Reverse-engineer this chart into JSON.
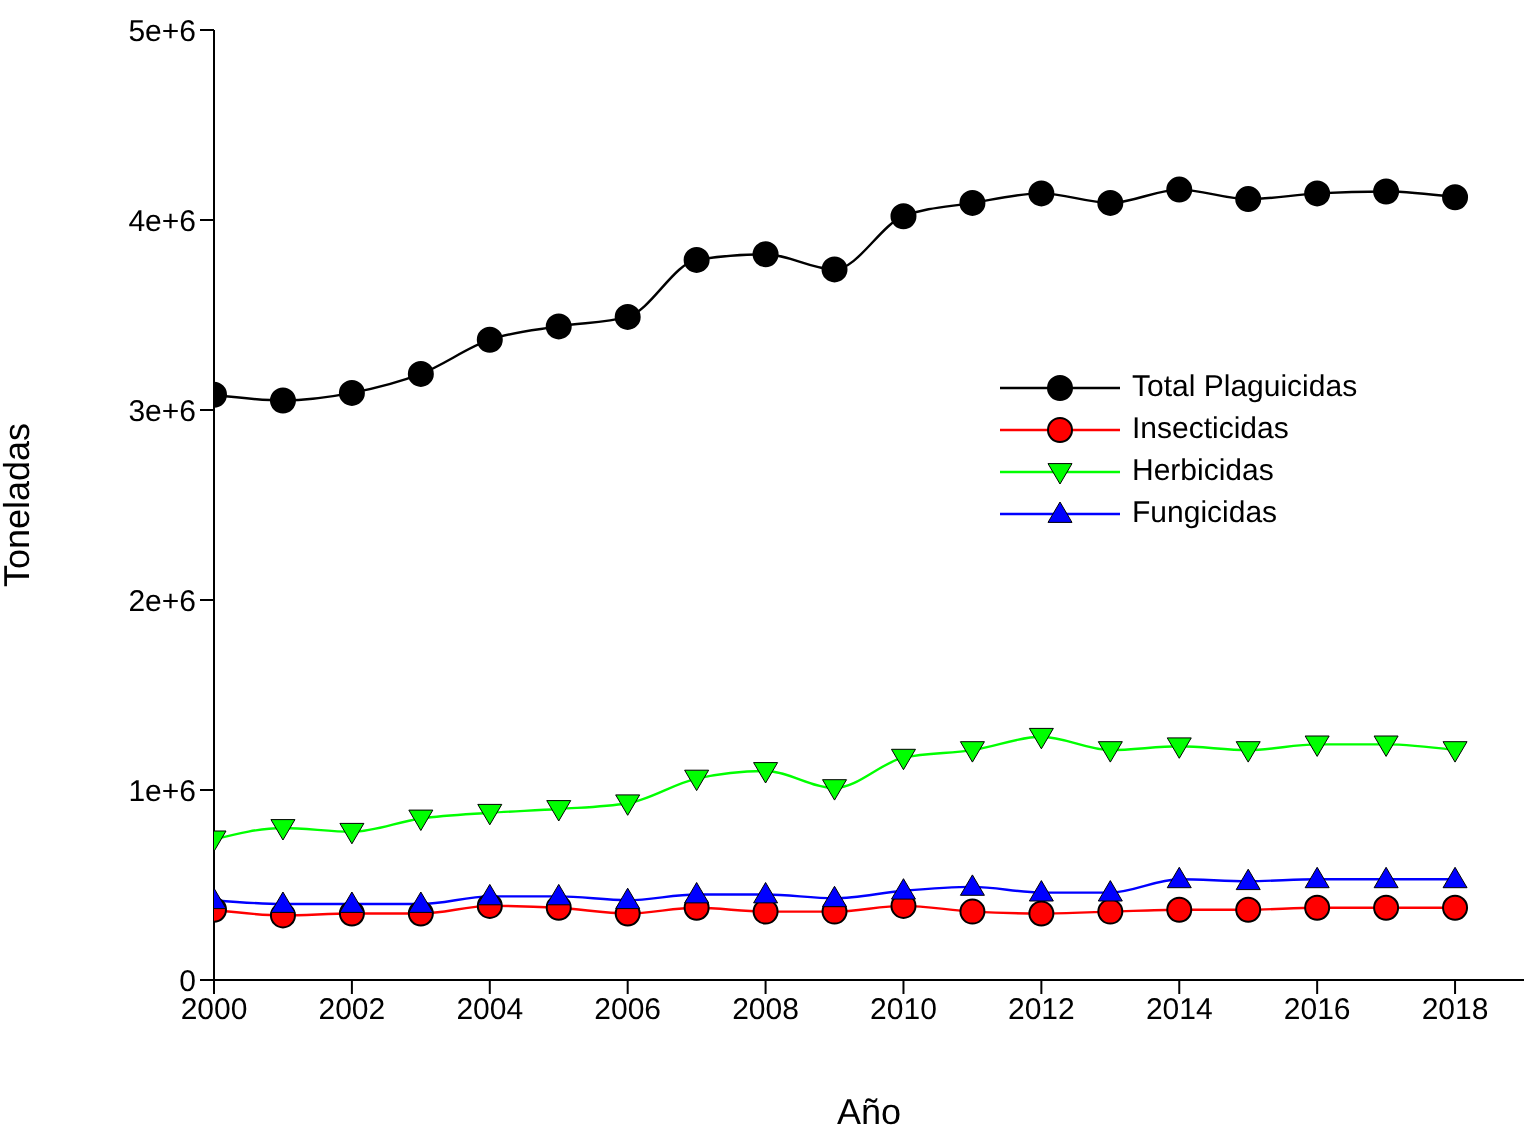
{
  "chart_data": {
    "type": "line",
    "xlabel": "Año",
    "ylabel": "Toneladas",
    "x": [
      2000,
      2001,
      2002,
      2003,
      2004,
      2005,
      2006,
      2007,
      2008,
      2009,
      2010,
      2011,
      2012,
      2013,
      2014,
      2015,
      2016,
      2017,
      2018
    ],
    "series": [
      {
        "name": "Total Plaguicidas",
        "color": "#000000",
        "marker": "circle",
        "values": [
          3080000,
          3050000,
          3090000,
          3190000,
          3370000,
          3440000,
          3490000,
          3790000,
          3820000,
          3740000,
          4020000,
          4090000,
          4140000,
          4090000,
          4160000,
          4110000,
          4140000,
          4150000,
          4120000
        ]
      },
      {
        "name": "Insecticidas",
        "color": "#ff0000",
        "marker": "circle",
        "values": [
          370000,
          340000,
          350000,
          350000,
          390000,
          380000,
          350000,
          380000,
          360000,
          360000,
          390000,
          360000,
          350000,
          360000,
          370000,
          370000,
          380000,
          380000,
          380000
        ]
      },
      {
        "name": "Herbicidas",
        "color": "#00ff00",
        "marker": "triangle-down",
        "values": [
          740000,
          800000,
          780000,
          850000,
          880000,
          900000,
          930000,
          1060000,
          1100000,
          1010000,
          1170000,
          1210000,
          1280000,
          1210000,
          1230000,
          1210000,
          1240000,
          1240000,
          1210000
        ]
      },
      {
        "name": "Fungicidas",
        "color": "#0000ff",
        "marker": "triangle",
        "values": [
          420000,
          400000,
          400000,
          400000,
          440000,
          440000,
          420000,
          450000,
          450000,
          430000,
          470000,
          490000,
          460000,
          460000,
          530000,
          520000,
          530000,
          530000,
          530000
        ]
      }
    ],
    "xlim": [
      2000,
      2019
    ],
    "xticks": [
      2000,
      2002,
      2004,
      2006,
      2008,
      2010,
      2012,
      2014,
      2016,
      2018
    ],
    "ylim": [
      0,
      5000000
    ],
    "yticks": [
      0,
      {
        "value": 1000000,
        "label": "1e+6"
      },
      {
        "value": 2000000,
        "label": "2e+6"
      },
      {
        "value": 3000000,
        "label": "3e+6"
      },
      {
        "value": 4000000,
        "label": "4e+6"
      },
      {
        "value": 5000000,
        "label": "5e+6"
      }
    ],
    "grid": false,
    "legend": "right",
    "line_style": "solid"
  }
}
